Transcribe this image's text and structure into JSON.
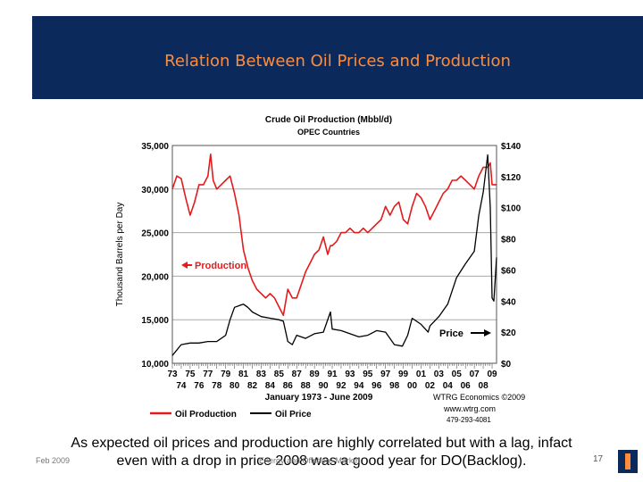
{
  "slide": {
    "title": "Relation Between Oil Prices and Production",
    "caption_line1": "As expected oil prices and production are highly correlated but with a lag, infact",
    "caption_line2": "even with a drop in price 2008 was a good year for DO(Backlog).",
    "footer_date": "Feb 2009",
    "footer_center": "Energy and Offshore Market",
    "page_number": "17"
  },
  "colors": {
    "banner": "#0b2a5b",
    "title": "#ff8c3a",
    "production": "#e41a1c",
    "price": "#000000"
  },
  "chart_data": {
    "type": "line",
    "title": "Crude Oil Production (Mbbl/d)",
    "subtitle": "OPEC Countries",
    "ylabel": "Thousand Barrels per Day",
    "xlabel": "January 1973 - June 2009",
    "ylim": [
      10000,
      35000
    ],
    "y2lim": [
      0,
      140
    ],
    "yticks": [
      "35,000",
      "30,000",
      "25,000",
      "20,000",
      "15,000",
      "10,000"
    ],
    "y2ticks": [
      "$140",
      "$120",
      "$100",
      "$80",
      "$60",
      "$40",
      "$20",
      "$0"
    ],
    "xticks_row1": [
      "73",
      "75",
      "77",
      "79",
      "81",
      "83",
      "85",
      "87",
      "89",
      "91",
      "93",
      "95",
      "97",
      "99",
      "01",
      "03",
      "05",
      "07",
      "09"
    ],
    "xticks_row2": [
      "74",
      "76",
      "78",
      "80",
      "82",
      "84",
      "86",
      "88",
      "90",
      "92",
      "94",
      "96",
      "98",
      "00",
      "02",
      "04",
      "06",
      "08"
    ],
    "annotations": {
      "production": "Production",
      "price": "Price"
    },
    "source": [
      "WTRG Economics ©2009",
      "www.wtrg.com",
      "479-293-4081"
    ],
    "legend": [
      "Oil Production",
      "Oil Price"
    ],
    "grid": true,
    "series": [
      {
        "name": "Oil Production",
        "axis": "left",
        "x": [
          1973.0,
          1973.5,
          1974.0,
          1974.5,
          1975.0,
          1975.5,
          1976.0,
          1976.5,
          1977.0,
          1977.3,
          1977.6,
          1978.0,
          1978.5,
          1979.0,
          1979.5,
          1980.0,
          1980.5,
          1981.0,
          1981.5,
          1982.0,
          1982.5,
          1983.0,
          1983.5,
          1984.0,
          1984.5,
          1985.0,
          1985.5,
          1986.0,
          1986.5,
          1987.0,
          1987.5,
          1988.0,
          1988.5,
          1989.0,
          1989.5,
          1990.0,
          1990.5,
          1990.8,
          1991.0,
          1991.5,
          1992.0,
          1992.5,
          1993.0,
          1993.5,
          1994.0,
          1994.5,
          1995.0,
          1995.5,
          1996.0,
          1996.5,
          1997.0,
          1997.5,
          1998.0,
          1998.5,
          1999.0,
          1999.5,
          2000.0,
          2000.5,
          2001.0,
          2001.5,
          2002.0,
          2002.5,
          2003.0,
          2003.5,
          2004.0,
          2004.5,
          2005.0,
          2005.5,
          2006.0,
          2006.5,
          2007.0,
          2007.5,
          2008.0,
          2008.5,
          2008.8,
          2009.0,
          2009.5
        ],
        "values": [
          30000,
          31500,
          31200,
          29000,
          27000,
          28500,
          30500,
          30500,
          31500,
          34000,
          31000,
          30000,
          30500,
          31000,
          31500,
          29500,
          27000,
          23000,
          21000,
          19500,
          18500,
          18000,
          17500,
          18000,
          17500,
          16500,
          15500,
          18500,
          17500,
          17500,
          19000,
          20500,
          21500,
          22500,
          23000,
          24500,
          22500,
          23500,
          23500,
          24000,
          25000,
          25000,
          25500,
          25000,
          25000,
          25500,
          25000,
          25500,
          26000,
          26500,
          28000,
          27000,
          28000,
          28500,
          26500,
          26000,
          28000,
          29500,
          29000,
          28000,
          26500,
          27500,
          28500,
          29500,
          30000,
          31000,
          31000,
          31500,
          31000,
          30500,
          30000,
          31500,
          32500,
          32500,
          33000,
          30500,
          30500
        ]
      },
      {
        "name": "Oil Price",
        "axis": "right",
        "x": [
          1973.0,
          1974.0,
          1975.0,
          1976.0,
          1977.0,
          1978.0,
          1979.0,
          1979.5,
          1980.0,
          1980.5,
          1981.0,
          1981.5,
          1982.0,
          1983.0,
          1984.0,
          1985.0,
          1985.5,
          1986.0,
          1986.5,
          1987.0,
          1988.0,
          1989.0,
          1990.0,
          1990.8,
          1991.0,
          1992.0,
          1993.0,
          1994.0,
          1995.0,
          1996.0,
          1997.0,
          1998.0,
          1998.9,
          1999.5,
          2000.0,
          2001.0,
          2001.8,
          2002.0,
          2003.0,
          2004.0,
          2005.0,
          2006.0,
          2007.0,
          2007.5,
          2008.0,
          2008.5,
          2008.8,
          2009.0,
          2009.2,
          2009.5
        ],
        "values": [
          5,
          12,
          13,
          13,
          14,
          14,
          18,
          28,
          36,
          37,
          38,
          36,
          33,
          30,
          29,
          28,
          27,
          14,
          12,
          18,
          16,
          19,
          20,
          33,
          22,
          21,
          19,
          17,
          18,
          21,
          20,
          12,
          11,
          18,
          29,
          25,
          20,
          24,
          30,
          38,
          55,
          64,
          72,
          95,
          110,
          134,
          100,
          42,
          40,
          68
        ]
      }
    ]
  }
}
